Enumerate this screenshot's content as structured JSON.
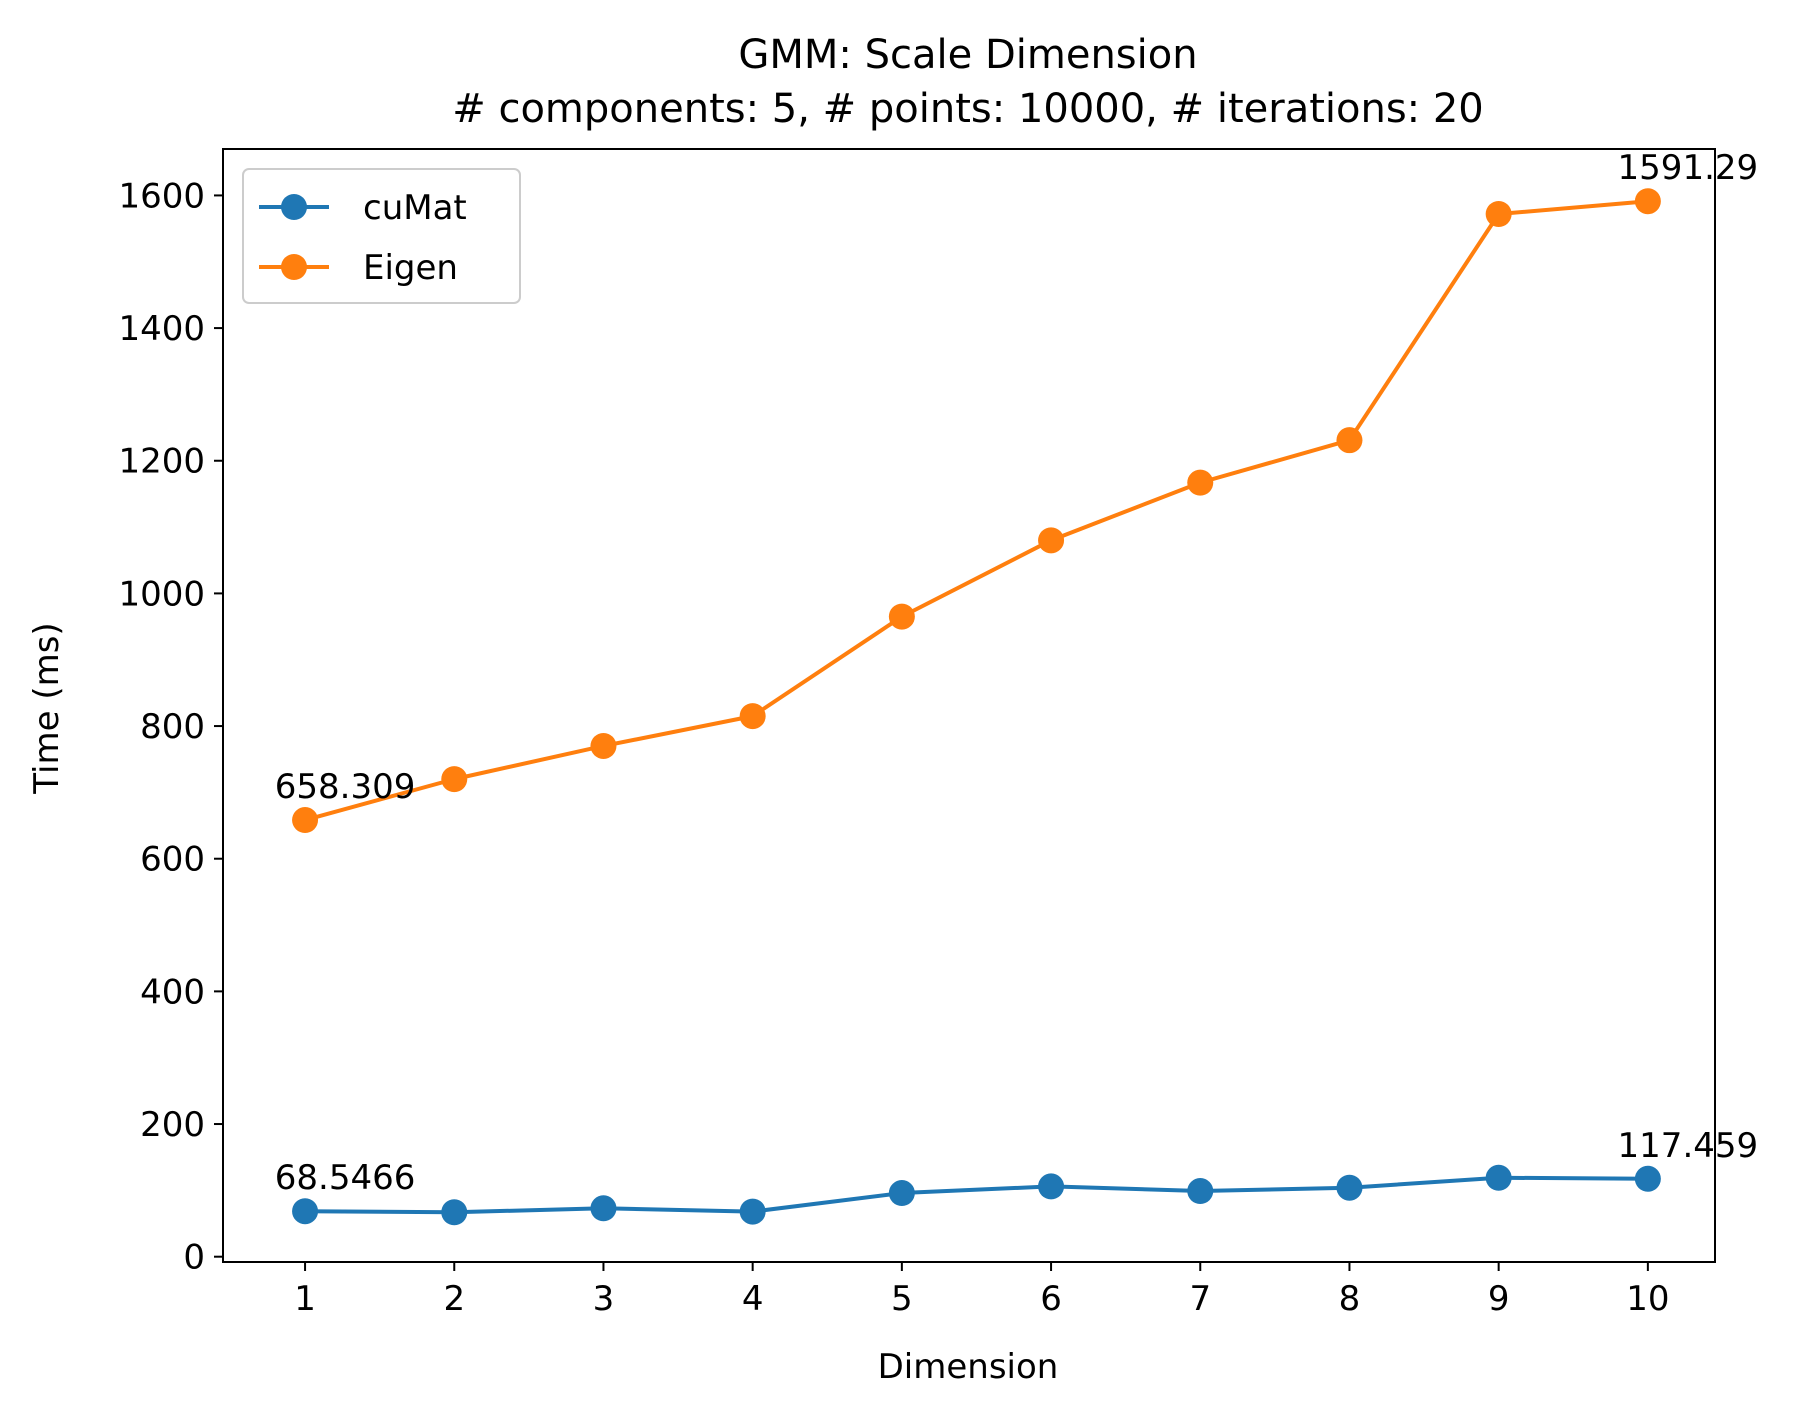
{
  "chart_data": {
    "type": "line",
    "title": "GMM: Scale Dimension",
    "subtitle": "# components: 5, # points: 10000, # iterations: 20",
    "xlabel": "Dimension",
    "ylabel": "Time (ms)",
    "x": [
      1,
      2,
      3,
      4,
      5,
      6,
      7,
      8,
      9,
      10
    ],
    "xlim": [
      0.45,
      10.45
    ],
    "ylim": [
      -8,
      1670
    ],
    "yticks": [
      0,
      200,
      400,
      600,
      800,
      1000,
      1200,
      1400,
      1600
    ],
    "xticks": [
      1,
      2,
      3,
      4,
      5,
      6,
      7,
      8,
      9,
      10
    ],
    "grid": false,
    "legend": "top-left",
    "series": [
      {
        "name": "cuMat",
        "color": "#1f77b4",
        "values": [
          68.5466,
          67,
          73,
          68,
          96,
          106,
          99,
          104,
          119,
          117.459
        ]
      },
      {
        "name": "Eigen",
        "color": "#ff7f0e",
        "values": [
          658.309,
          720,
          770,
          815,
          965,
          1080,
          1167,
          1231,
          1572,
          1591.29
        ]
      }
    ],
    "annotations": [
      {
        "series": 0,
        "index": 0,
        "text": "68.5466"
      },
      {
        "series": 0,
        "index": 9,
        "text": "117.459"
      },
      {
        "series": 1,
        "index": 0,
        "text": "658.309"
      },
      {
        "series": 1,
        "index": 9,
        "text": "1591.29"
      }
    ]
  }
}
